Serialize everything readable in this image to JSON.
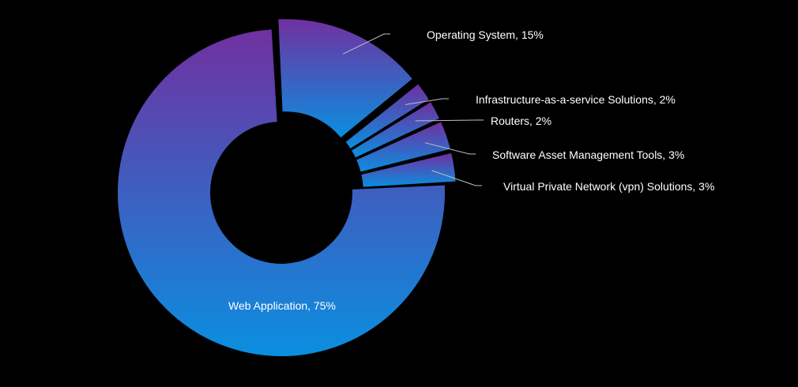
{
  "chart_data": {
    "type": "pie",
    "variant": "donut",
    "title": "",
    "legend": "none",
    "slices": [
      {
        "label": "Web Application",
        "value": 75,
        "display": "Web Application, 75%"
      },
      {
        "label": "Operating System",
        "value": 15,
        "display": "Operating System, 15%"
      },
      {
        "label": "Infrastructure-as-a-service Solutions",
        "value": 2,
        "display": "Infrastructure-as-a-service Solutions, 2%"
      },
      {
        "label": "Routers",
        "value": 2,
        "display": "Routers, 2%"
      },
      {
        "label": "Software Asset Management Tools",
        "value": 3,
        "display": "Software Asset Management Tools, 3%"
      },
      {
        "label": "Virtual Private Network (vpn) Solutions",
        "value": 3,
        "display": "Virtual Private Network (vpn) Solutions, 3%"
      }
    ],
    "colors": {
      "gradient_start": "#7030a0",
      "gradient_end": "#0a8fe0",
      "label_text": "#ffffff",
      "leader_line": "#bfbfbf"
    }
  }
}
